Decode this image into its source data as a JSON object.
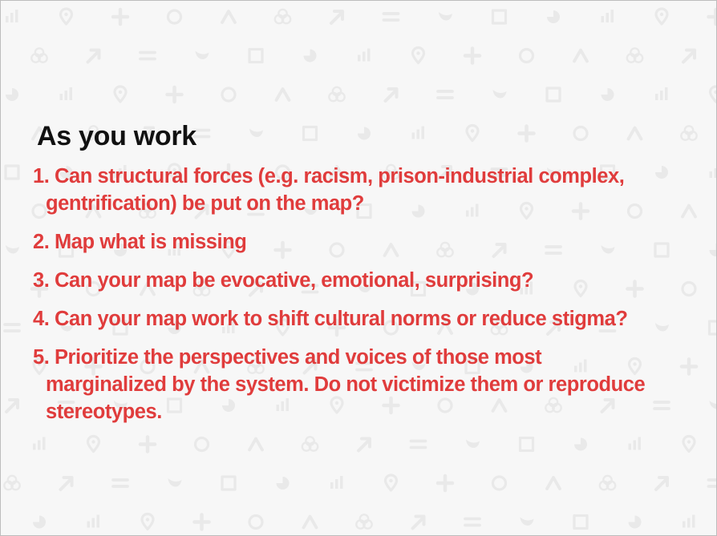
{
  "slide": {
    "title": "As you work",
    "items": [
      {
        "lines": [
          "1. Can structural forces (e.g. racism, prison-industrial complex,",
          "gentrification) be put on the map?"
        ]
      },
      {
        "lines": [
          "2. Map what is missing"
        ]
      },
      {
        "lines": [
          "3. Can your map be evocative, emotional, surprising?"
        ]
      },
      {
        "lines": [
          "4. Can your map work to shift cultural norms or reduce stigma?"
        ]
      },
      {
        "lines": [
          "5. Prioritize the perspectives and voices of those most",
          "marginalized by the system. Do not victimize them or reproduce",
          "stereotypes."
        ]
      }
    ]
  },
  "background": {
    "color": "#f7f7f7",
    "icon_color": "#e9e9e9",
    "icons": [
      "bar-chart-icon",
      "pin-icon",
      "plus-icon",
      "circle-icon",
      "caret-up-icon",
      "rings-icon",
      "arrow-icon",
      "equals-icon",
      "leaf-icon",
      "square-icon",
      "pie-icon"
    ]
  },
  "colors": {
    "title": "#111111",
    "items": "#e03c3c"
  }
}
